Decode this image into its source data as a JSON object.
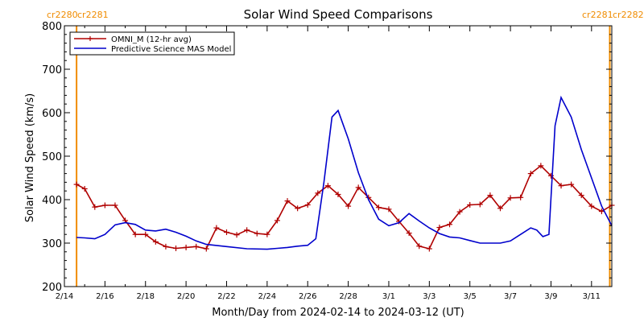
{
  "chart_data": {
    "type": "line",
    "title": "Solar Wind Speed Comparisons",
    "xlabel": "Month/Day from 2024-02-14 to 2024-03-12 (UT)",
    "ylabel": "Solar Wind Speed (km/s)",
    "ylim": [
      200,
      800
    ],
    "yticks": [
      200,
      300,
      400,
      500,
      600,
      700,
      800
    ],
    "xlim_days": [
      0,
      27
    ],
    "xticks": [
      {
        "day": 0,
        "label": "2/14"
      },
      {
        "day": 2,
        "label": "2/16"
      },
      {
        "day": 4,
        "label": "2/18"
      },
      {
        "day": 6,
        "label": "2/20"
      },
      {
        "day": 8,
        "label": "2/22"
      },
      {
        "day": 10,
        "label": "2/24"
      },
      {
        "day": 12,
        "label": "2/26"
      },
      {
        "day": 14,
        "label": "2/28"
      },
      {
        "day": 16,
        "label": "3/1"
      },
      {
        "day": 18,
        "label": "3/3"
      },
      {
        "day": 20,
        "label": "3/5"
      },
      {
        "day": 22,
        "label": "3/7"
      },
      {
        "day": 24,
        "label": "3/9"
      },
      {
        "day": 26,
        "label": "3/11"
      }
    ],
    "carrington": [
      {
        "day": 0.6,
        "left_label": "cr2280",
        "right_label": "cr2281"
      },
      {
        "day": 26.9,
        "left_label": "cr2281",
        "right_label": "cr2282"
      }
    ],
    "legend_position": "top-left",
    "series": [
      {
        "name": "OMNI_M (12-hr avg)",
        "color": "#b00000",
        "marker": "plus",
        "x": [
          0.6,
          1.0,
          1.5,
          2.0,
          2.5,
          3.0,
          3.5,
          4.0,
          4.5,
          5.0,
          5.5,
          6.0,
          6.5,
          7.0,
          7.5,
          8.0,
          8.5,
          9.0,
          9.5,
          10.0,
          10.5,
          11.0,
          11.5,
          12.0,
          12.5,
          13.0,
          13.5,
          14.0,
          14.5,
          15.0,
          15.5,
          16.0,
          16.5,
          17.0,
          17.5,
          18.0,
          18.5,
          19.0,
          19.5,
          20.0,
          20.5,
          21.0,
          21.5,
          22.0,
          22.5,
          23.0,
          23.5,
          24.0,
          24.5,
          25.0,
          25.5,
          26.0,
          26.5,
          27.0
        ],
        "values": [
          435,
          425,
          383,
          387,
          387,
          352,
          320,
          320,
          303,
          292,
          288,
          290,
          292,
          287,
          335,
          325,
          319,
          330,
          322,
          320,
          352,
          397,
          380,
          388,
          415,
          432,
          412,
          385,
          428,
          405,
          382,
          378,
          350,
          323,
          293,
          287,
          336,
          343,
          372,
          388,
          389,
          410,
          380,
          404,
          405,
          460,
          478,
          455,
          432,
          435,
          410,
          385,
          373,
          387
        ]
      },
      {
        "name": "Predictive Science MAS Model",
        "color": "#0000cc",
        "marker": "none",
        "x": [
          0.6,
          1.0,
          1.5,
          2.0,
          2.5,
          3.0,
          3.5,
          4.0,
          4.5,
          5.0,
          5.5,
          6.0,
          6.5,
          7.0,
          8.0,
          9.0,
          10.0,
          10.5,
          11.0,
          11.5,
          12.0,
          12.4,
          12.8,
          13.2,
          13.5,
          14.0,
          14.5,
          15.0,
          15.5,
          16.0,
          16.5,
          17.0,
          17.5,
          18.0,
          18.5,
          19.0,
          19.5,
          20.0,
          20.5,
          21.0,
          21.5,
          22.0,
          22.5,
          23.0,
          23.3,
          23.6,
          23.9,
          24.2,
          24.5,
          25.0,
          25.5,
          26.0,
          26.5,
          27.0
        ],
        "values": [
          313,
          312,
          310,
          320,
          342,
          347,
          343,
          330,
          328,
          332,
          325,
          316,
          305,
          297,
          292,
          287,
          286,
          288,
          290,
          293,
          295,
          310,
          440,
          590,
          605,
          540,
          462,
          400,
          355,
          340,
          347,
          368,
          351,
          335,
          322,
          314,
          312,
          306,
          300,
          300,
          300,
          305,
          320,
          335,
          330,
          315,
          320,
          570,
          635,
          590,
          515,
          450,
          385,
          340
        ]
      }
    ]
  }
}
